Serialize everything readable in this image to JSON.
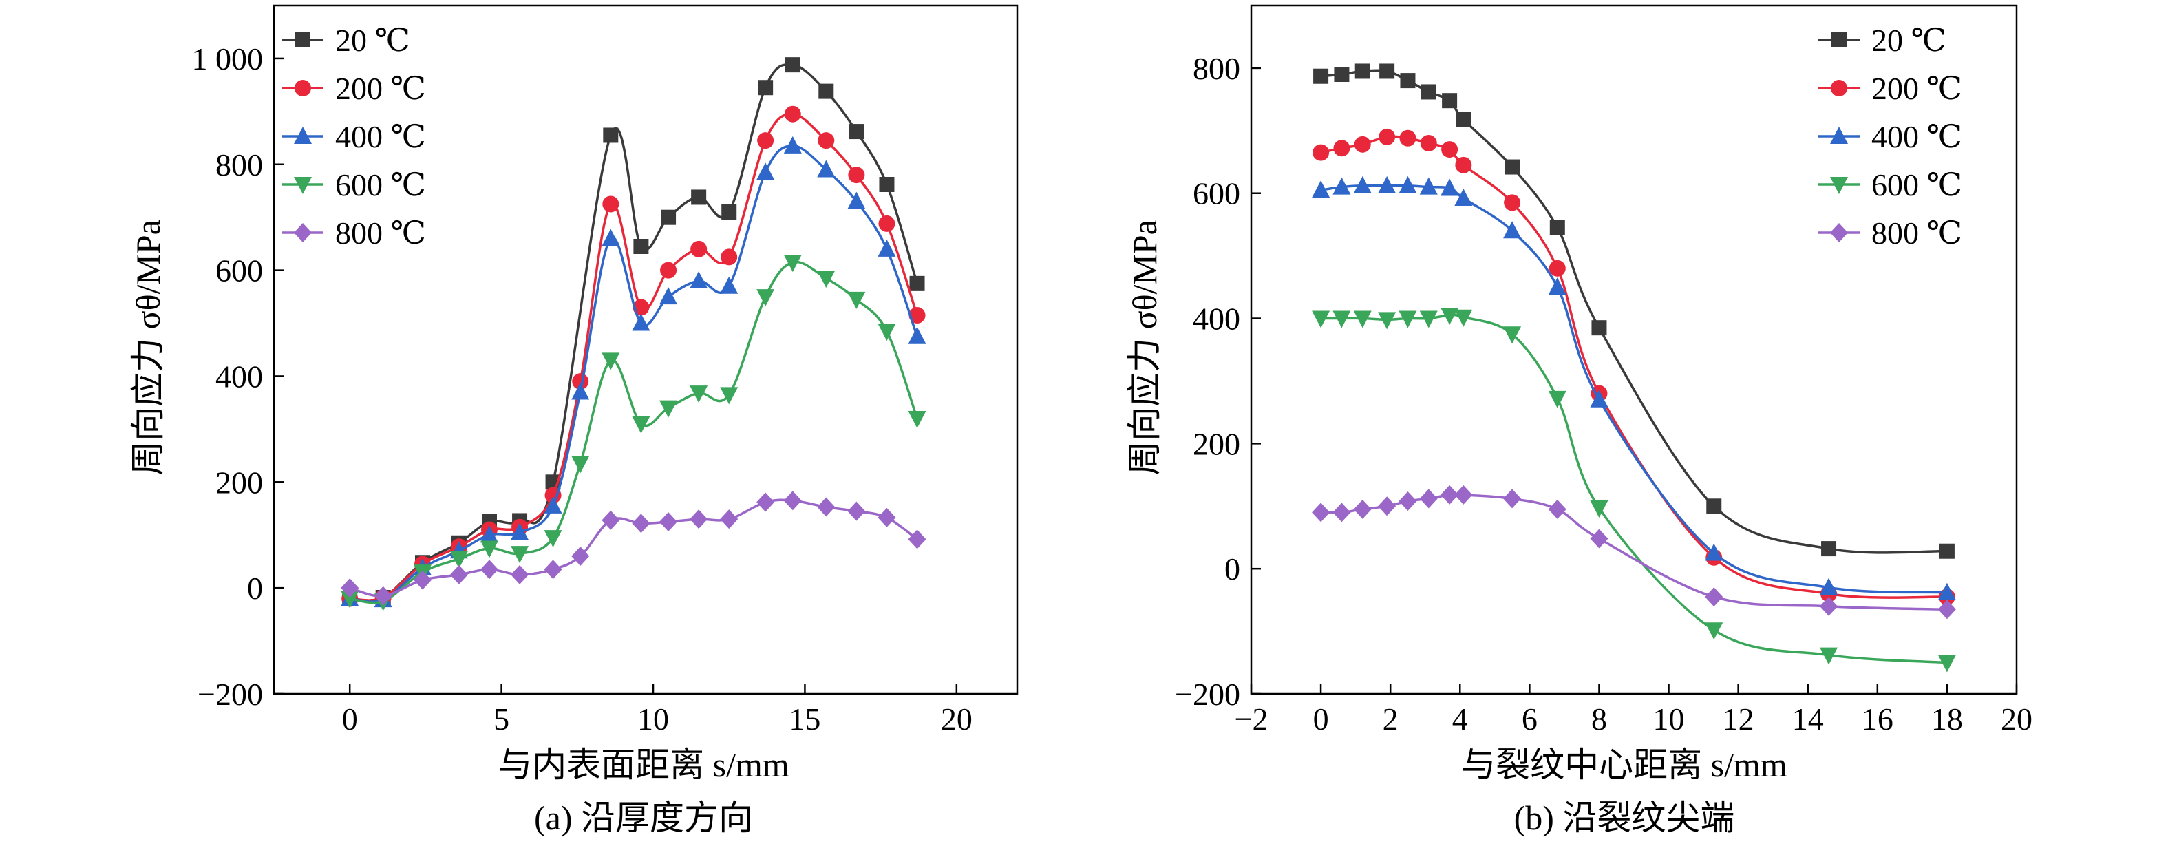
{
  "colors": {
    "s20": "#3a3a3a",
    "s200": "#e8283a",
    "s400": "#2f66c9",
    "s600": "#3aa65a",
    "s800": "#9a66c8"
  },
  "chart_data": [
    {
      "type": "line",
      "caption": "(a) 沿厚度方向",
      "xlabel": "与内表面距离 s/mm",
      "ylabel": "周向应力 σθ/MPa",
      "xlim": [
        -2.5,
        22
      ],
      "ylim": [
        -200,
        1100
      ],
      "x_ticks": [
        0,
        5,
        10,
        15,
        20
      ],
      "x_tick_labels": [
        "0",
        "5",
        "10",
        "15",
        "20"
      ],
      "y_ticks": [
        -200,
        0,
        200,
        400,
        600,
        800,
        1000
      ],
      "y_tick_labels": [
        "−200",
        "0",
        "200",
        "400",
        "600",
        "800",
        "1 000"
      ],
      "grid": false,
      "legend_position": "top-left",
      "series": [
        {
          "name": "20 ℃",
          "marker": "square",
          "color_key": "s20",
          "x": [
            0,
            1.1,
            2.4,
            3.6,
            4.6,
            5.6,
            6.7,
            8.6,
            9.6,
            10.5,
            11.5,
            12.5,
            13.7,
            14.6,
            15.7,
            16.7,
            17.7,
            18.7
          ],
          "y": [
            -20,
            -18,
            48,
            85,
            125,
            127,
            200,
            855,
            645,
            700,
            738,
            710,
            945,
            988,
            938,
            862,
            762,
            575
          ]
        },
        {
          "name": "200 ℃",
          "marker": "circle",
          "color_key": "s200",
          "x": [
            0,
            1.1,
            2.4,
            3.6,
            4.6,
            5.6,
            6.7,
            7.6,
            8.6,
            9.6,
            10.5,
            11.5,
            12.5,
            13.7,
            14.6,
            15.7,
            16.7,
            17.7,
            18.7
          ],
          "y": [
            -20,
            -18,
            45,
            78,
            110,
            115,
            175,
            390,
            725,
            530,
            600,
            640,
            625,
            845,
            895,
            845,
            780,
            688,
            515
          ]
        },
        {
          "name": "400 ℃",
          "marker": "triangle",
          "color_key": "s400",
          "x": [
            0,
            1.1,
            2.4,
            3.6,
            4.6,
            5.6,
            6.7,
            7.6,
            8.6,
            9.6,
            10.5,
            11.5,
            12.5,
            13.7,
            14.6,
            15.7,
            16.7,
            17.7,
            18.7
          ],
          "y": [
            -20,
            -22,
            38,
            70,
            100,
            105,
            155,
            370,
            660,
            500,
            550,
            580,
            570,
            785,
            835,
            790,
            730,
            640,
            475
          ]
        },
        {
          "name": "600 ℃",
          "marker": "triangle-down",
          "color_key": "s600",
          "x": [
            0,
            1.1,
            2.4,
            3.6,
            4.6,
            5.6,
            6.7,
            7.6,
            8.6,
            9.6,
            10.5,
            11.5,
            12.5,
            13.7,
            14.6,
            15.7,
            16.7,
            17.7,
            18.7
          ],
          "y": [
            -20,
            -25,
            30,
            55,
            75,
            65,
            95,
            235,
            430,
            310,
            340,
            368,
            365,
            550,
            615,
            585,
            545,
            485,
            320
          ]
        },
        {
          "name": "800 ℃",
          "marker": "diamond",
          "color_key": "s800",
          "x": [
            0,
            1.1,
            2.4,
            3.6,
            4.6,
            5.6,
            6.7,
            7.6,
            8.6,
            9.6,
            10.5,
            11.5,
            12.5,
            13.7,
            14.6,
            15.7,
            16.7,
            17.7,
            18.7
          ],
          "y": [
            0,
            -15,
            15,
            25,
            35,
            25,
            35,
            60,
            128,
            122,
            125,
            130,
            130,
            162,
            165,
            153,
            145,
            133,
            92
          ]
        }
      ]
    },
    {
      "type": "line",
      "caption": "(b) 沿裂纹尖端",
      "xlabel": "与裂纹中心距离 s/mm",
      "ylabel": "周向应力 σθ/MPa",
      "xlim": [
        -2,
        20
      ],
      "ylim": [
        -200,
        900
      ],
      "x_ticks": [
        -2,
        0,
        2,
        4,
        6,
        8,
        10,
        12,
        14,
        16,
        18,
        20
      ],
      "x_tick_labels": [
        "−2",
        "0",
        "2",
        "4",
        "6",
        "8",
        "10",
        "12",
        "14",
        "16",
        "18",
        "20"
      ],
      "y_ticks": [
        -200,
        0,
        200,
        400,
        600,
        800
      ],
      "y_tick_labels": [
        "−200",
        "0",
        "200",
        "400",
        "600",
        "800"
      ],
      "grid": false,
      "legend_position": "top-right",
      "series": [
        {
          "name": "20 ℃",
          "marker": "square",
          "color_key": "s20",
          "x": [
            0,
            0.6,
            1.2,
            1.9,
            2.5,
            3.1,
            3.7,
            4.1,
            5.5,
            6.8,
            8.0,
            11.3,
            14.6,
            18.0
          ],
          "y": [
            787,
            790,
            795,
            795,
            780,
            762,
            748,
            718,
            642,
            545,
            385,
            100,
            32,
            28
          ]
        },
        {
          "name": "200 ℃",
          "marker": "circle",
          "color_key": "s200",
          "x": [
            0,
            0.6,
            1.2,
            1.9,
            2.5,
            3.1,
            3.7,
            4.1,
            5.5,
            6.8,
            8.0,
            11.3,
            14.6,
            18.0
          ],
          "y": [
            665,
            672,
            678,
            690,
            688,
            680,
            670,
            645,
            585,
            480,
            280,
            18,
            -40,
            -45
          ]
        },
        {
          "name": "400 ℃",
          "marker": "triangle",
          "color_key": "s400",
          "x": [
            0,
            0.6,
            1.2,
            1.9,
            2.5,
            3.1,
            3.7,
            4.1,
            5.5,
            6.8,
            8.0,
            11.3,
            14.6,
            18.0
          ],
          "y": [
            605,
            610,
            612,
            612,
            612,
            610,
            608,
            592,
            540,
            450,
            270,
            25,
            -30,
            -38
          ]
        },
        {
          "name": "600 ℃",
          "marker": "triangle-down",
          "color_key": "s600",
          "x": [
            0,
            0.6,
            1.2,
            1.9,
            2.5,
            3.1,
            3.7,
            4.1,
            5.5,
            6.8,
            8.0,
            11.3,
            14.6,
            18.0
          ],
          "y": [
            400,
            400,
            400,
            398,
            400,
            400,
            405,
            402,
            375,
            272,
            97,
            -98,
            -138,
            -150
          ]
        },
        {
          "name": "800 ℃",
          "marker": "diamond",
          "color_key": "s800",
          "x": [
            0,
            0.6,
            1.2,
            1.9,
            2.5,
            3.1,
            3.7,
            4.1,
            5.5,
            6.8,
            8.0,
            11.3,
            14.6,
            18.0
          ],
          "y": [
            90,
            90,
            95,
            100,
            108,
            112,
            118,
            118,
            112,
            95,
            48,
            -45,
            -60,
            -65
          ]
        }
      ]
    }
  ]
}
